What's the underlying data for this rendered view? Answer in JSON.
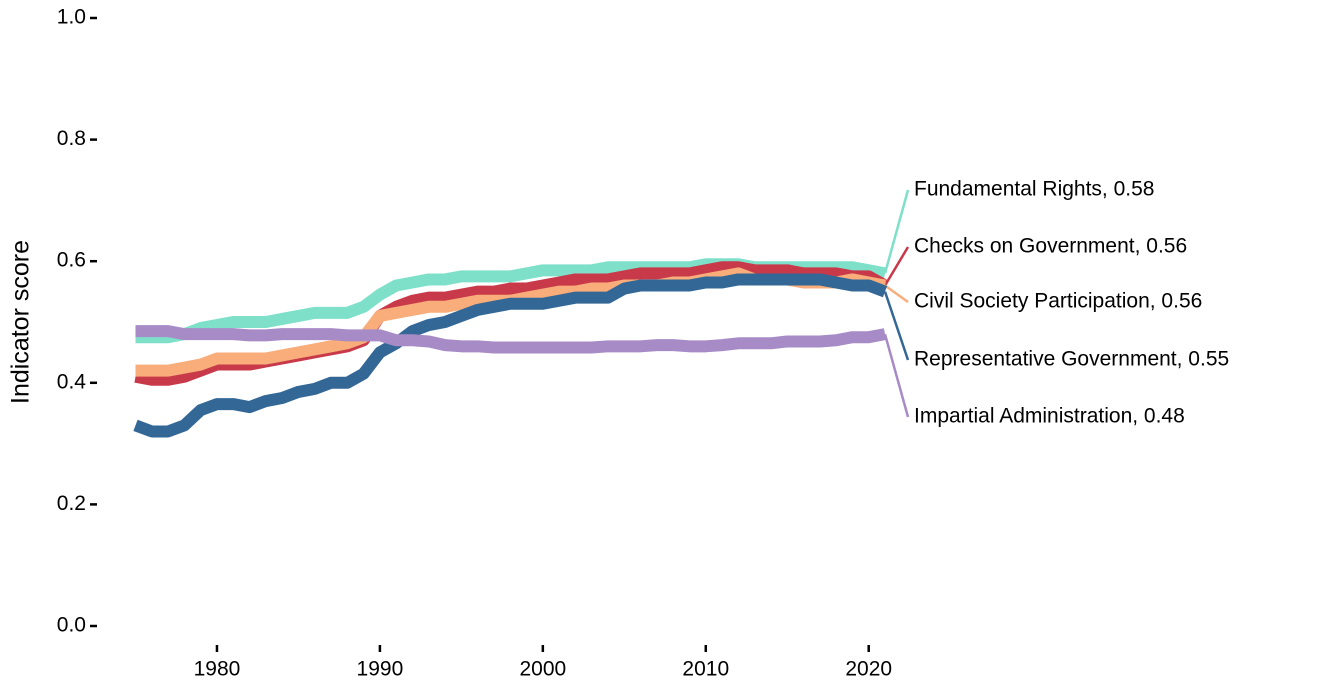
{
  "chart_data": {
    "type": "line",
    "y_label": "Indicator score",
    "x": [
      1975,
      1976,
      1977,
      1978,
      1979,
      1980,
      1981,
      1982,
      1983,
      1984,
      1985,
      1986,
      1987,
      1988,
      1989,
      1990,
      1991,
      1992,
      1993,
      1994,
      1995,
      1996,
      1997,
      1998,
      1999,
      2000,
      2001,
      2002,
      2003,
      2004,
      2005,
      2006,
      2007,
      2008,
      2009,
      2010,
      2011,
      2012,
      2013,
      2014,
      2015,
      2016,
      2017,
      2018,
      2019,
      2020,
      2021
    ],
    "xlim": [
      1975,
      2021
    ],
    "xticks": [
      1980,
      1990,
      2000,
      2010,
      2020
    ],
    "ylim": [
      0,
      1
    ],
    "yticks": [
      {
        "value": 0,
        "label": "0.0"
      },
      0.2,
      0.4,
      0.6,
      0.8,
      {
        "value": 1,
        "label": "1.0"
      }
    ],
    "series": [
      {
        "name": "Fundamental Rights, 0.58",
        "color": "#7fe0ca",
        "values": [
          0.475,
          0.475,
          0.475,
          0.48,
          0.49,
          0.495,
          0.5,
          0.5,
          0.5,
          0.505,
          0.51,
          0.515,
          0.515,
          0.515,
          0.525,
          0.545,
          0.56,
          0.565,
          0.57,
          0.57,
          0.575,
          0.575,
          0.575,
          0.575,
          0.58,
          0.585,
          0.585,
          0.585,
          0.585,
          0.59,
          0.59,
          0.59,
          0.59,
          0.59,
          0.59,
          0.595,
          0.595,
          0.595,
          0.59,
          0.59,
          0.59,
          0.59,
          0.59,
          0.59,
          0.59,
          0.585,
          0.58
        ]
      },
      {
        "name": "Checks on Government, 0.56",
        "color": "#c8394a",
        "values": [
          0.41,
          0.405,
          0.405,
          0.41,
          0.42,
          0.43,
          0.43,
          0.43,
          0.435,
          0.44,
          0.445,
          0.45,
          0.455,
          0.46,
          0.47,
          0.51,
          0.525,
          0.535,
          0.54,
          0.54,
          0.545,
          0.55,
          0.55,
          0.555,
          0.555,
          0.56,
          0.565,
          0.57,
          0.57,
          0.57,
          0.575,
          0.58,
          0.58,
          0.58,
          0.58,
          0.585,
          0.59,
          0.59,
          0.585,
          0.585,
          0.585,
          0.58,
          0.58,
          0.58,
          0.575,
          0.575,
          0.56
        ]
      },
      {
        "name": "Civil Society Participation, 0.56",
        "color": "#f8ad7a",
        "values": [
          0.42,
          0.42,
          0.42,
          0.425,
          0.43,
          0.44,
          0.44,
          0.44,
          0.44,
          0.445,
          0.45,
          0.455,
          0.46,
          0.465,
          0.475,
          0.51,
          0.515,
          0.52,
          0.525,
          0.525,
          0.53,
          0.535,
          0.535,
          0.535,
          0.54,
          0.545,
          0.55,
          0.55,
          0.555,
          0.555,
          0.56,
          0.56,
          0.56,
          0.565,
          0.565,
          0.57,
          0.575,
          0.58,
          0.57,
          0.57,
          0.57,
          0.565,
          0.565,
          0.565,
          0.57,
          0.565,
          0.56
        ]
      },
      {
        "name": "Representative Government, 0.55",
        "color": "#336796",
        "values": [
          0.33,
          0.32,
          0.32,
          0.33,
          0.355,
          0.365,
          0.365,
          0.36,
          0.37,
          0.375,
          0.385,
          0.39,
          0.4,
          0.4,
          0.415,
          0.45,
          0.465,
          0.485,
          0.495,
          0.5,
          0.51,
          0.52,
          0.525,
          0.53,
          0.53,
          0.53,
          0.535,
          0.54,
          0.54,
          0.54,
          0.555,
          0.56,
          0.56,
          0.56,
          0.56,
          0.565,
          0.565,
          0.57,
          0.57,
          0.57,
          0.57,
          0.57,
          0.57,
          0.565,
          0.56,
          0.56,
          0.55
        ]
      },
      {
        "name": "Impartial Administration, 0.48",
        "color": "#a78bc6",
        "values": [
          0.485,
          0.485,
          0.485,
          0.48,
          0.48,
          0.48,
          0.48,
          0.478,
          0.478,
          0.48,
          0.48,
          0.48,
          0.48,
          0.478,
          0.478,
          0.478,
          0.47,
          0.47,
          0.468,
          0.462,
          0.46,
          0.46,
          0.458,
          0.458,
          0.458,
          0.458,
          0.458,
          0.458,
          0.458,
          0.46,
          0.46,
          0.46,
          0.462,
          0.462,
          0.46,
          0.46,
          0.462,
          0.465,
          0.465,
          0.465,
          0.468,
          0.468,
          0.468,
          0.47,
          0.475,
          0.475,
          0.48
        ]
      }
    ]
  }
}
